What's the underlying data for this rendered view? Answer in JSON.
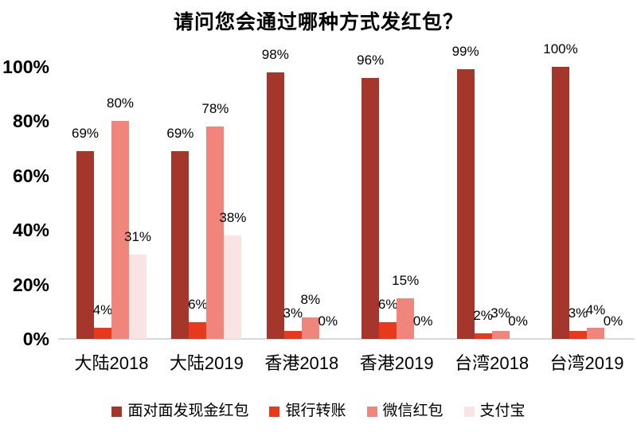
{
  "chart_data": {
    "type": "bar",
    "title": "请问您会通过哪种方式发红包？",
    "categories": [
      "大陆2018",
      "大陆2019",
      "香港2018",
      "香港2019",
      "台湾2018",
      "台湾2019"
    ],
    "series": [
      {
        "name": "面对面发现金红包",
        "color": "#A5362B",
        "values": [
          69,
          69,
          98,
          96,
          99,
          100
        ]
      },
      {
        "name": "银行转账",
        "color": "#E8391D",
        "values": [
          4,
          6,
          3,
          6,
          2,
          3
        ]
      },
      {
        "name": "微信红包",
        "color": "#F0857B",
        "values": [
          80,
          78,
          8,
          15,
          3,
          4
        ]
      },
      {
        "name": "支付宝",
        "color": "#FAE3E3",
        "values": [
          31,
          38,
          0,
          0,
          0,
          0
        ]
      }
    ],
    "y_ticks": [
      "0%",
      "20%",
      "40%",
      "60%",
      "80%",
      "100%"
    ],
    "ylim": [
      0,
      100
    ],
    "value_suffix": "%",
    "grid": false,
    "legend_position": "bottom",
    "axis_line_color": "#D9D9D9",
    "text_color": "#000000",
    "background_color": "#FFFFFF"
  }
}
